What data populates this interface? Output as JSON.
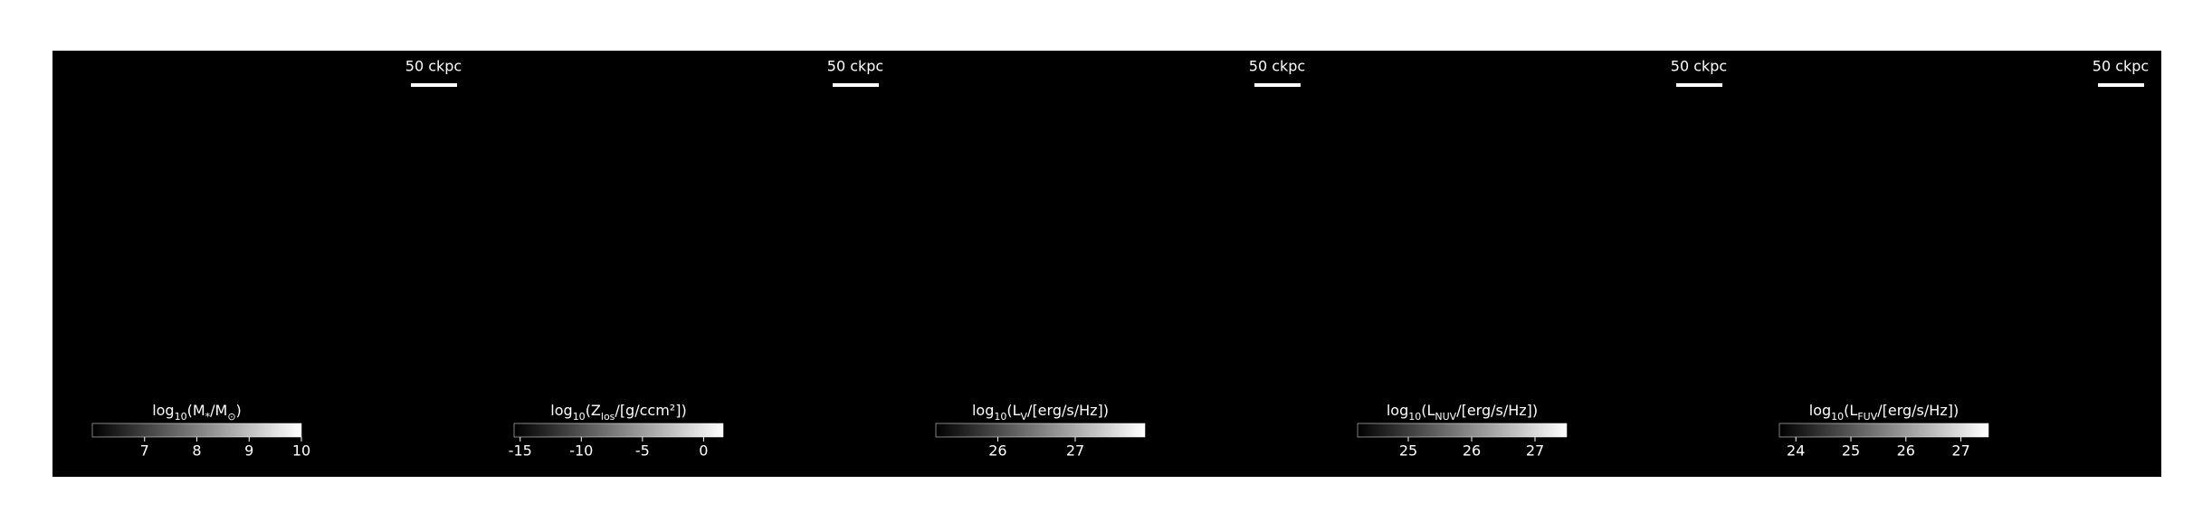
{
  "chart_data": [
    {
      "type": "image",
      "scale_label": "50 ckpc",
      "colorbar_label": [
        "log",
        "10",
        "(M",
        "*",
        "/M",
        "⊙",
        ")"
      ],
      "clim": [
        6.0,
        10.0
      ],
      "cticks": [
        7,
        8,
        9,
        10
      ]
    },
    {
      "type": "image",
      "scale_label": "50 ckpc",
      "colorbar_label": [
        "log",
        "10",
        "(Z",
        "los",
        "/[g/ccm²])"
      ],
      "clim": [
        -15.5,
        1.6
      ],
      "cticks": [
        -15,
        -10,
        -5,
        0
      ]
    },
    {
      "type": "image",
      "scale_label": "50 ckpc",
      "colorbar_label": [
        "log",
        "10",
        "(L",
        "V",
        "/[erg/s/Hz])"
      ],
      "clim": [
        25.2,
        27.9
      ],
      "cticks": [
        26,
        27
      ]
    },
    {
      "type": "image",
      "scale_label": "50 ckpc",
      "colorbar_label": [
        "log",
        "10",
        "(L",
        "NUV",
        "/[erg/s/Hz])"
      ],
      "clim": [
        24.2,
        27.5
      ],
      "cticks": [
        25,
        26,
        27
      ]
    },
    {
      "type": "image",
      "scale_label": "50 ckpc",
      "colorbar_label": [
        "log",
        "10",
        "(L",
        "FUV",
        "/[erg/s/Hz])"
      ],
      "clim": [
        23.7,
        27.5
      ],
      "cticks": [
        24,
        25,
        26,
        27
      ]
    }
  ]
}
